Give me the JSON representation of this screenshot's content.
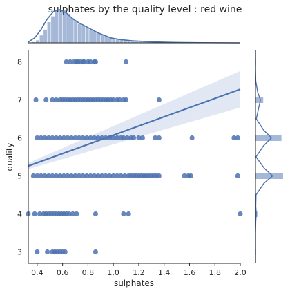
{
  "chart_data": {
    "type": "scatter",
    "title": "sulphates by the quality level : red wine",
    "xlabel": "sulphates",
    "ylabel": "quality",
    "xlim": [
      0.33,
      2.0
    ],
    "ylim": [
      2.7,
      8.3
    ],
    "xticks": [
      "0.4",
      "0.6",
      "0.8",
      "1.0",
      "1.2",
      "1.4",
      "1.6",
      "1.8",
      "2.0"
    ],
    "yticks": [
      "3",
      "4",
      "5",
      "6",
      "7",
      "8"
    ],
    "grid": false,
    "color": "#4c72b0",
    "band_color": "#c9d4ea",
    "regression": {
      "x": [
        0.33,
        2.0
      ],
      "y": [
        5.26,
        7.28
      ],
      "ci_lower": [
        5.18,
        6.8
      ],
      "ci_upper": [
        5.34,
        7.76
      ]
    },
    "points": [
      {
        "quality": 8,
        "sulphates": [
          0.63,
          0.66,
          0.69,
          0.71,
          0.72,
          0.74,
          0.76,
          0.77,
          0.8,
          0.82,
          0.85,
          0.86,
          1.1
        ]
      },
      {
        "quality": 7,
        "sulphates": [
          0.39,
          0.47,
          0.52,
          0.55,
          0.58,
          0.6,
          0.62,
          0.64,
          0.66,
          0.68,
          0.7,
          0.72,
          0.74,
          0.76,
          0.78,
          0.8,
          0.82,
          0.84,
          0.86,
          0.88,
          0.9,
          0.92,
          0.94,
          0.96,
          0.98,
          1.0,
          1.03,
          1.05,
          1.08,
          1.1,
          1.36
        ]
      },
      {
        "quality": 6,
        "sulphates": [
          0.4,
          0.43,
          0.46,
          0.49,
          0.52,
          0.55,
          0.58,
          0.61,
          0.64,
          0.67,
          0.7,
          0.73,
          0.76,
          0.79,
          0.82,
          0.85,
          0.88,
          0.91,
          0.94,
          0.97,
          1.0,
          1.03,
          1.06,
          1.08,
          1.11,
          1.14,
          1.16,
          1.2,
          1.23,
          1.33,
          1.36,
          1.62,
          1.95,
          1.98
        ]
      },
      {
        "quality": 5,
        "sulphates": [
          0.37,
          0.4,
          0.43,
          0.46,
          0.49,
          0.52,
          0.55,
          0.58,
          0.61,
          0.64,
          0.67,
          0.7,
          0.73,
          0.76,
          0.79,
          0.82,
          0.85,
          0.88,
          0.91,
          0.94,
          0.97,
          1.0,
          1.03,
          1.06,
          1.09,
          1.12,
          1.14,
          1.16,
          1.18,
          1.2,
          1.22,
          1.24,
          1.26,
          1.28,
          1.3,
          1.32,
          1.34,
          1.36,
          1.56,
          1.59,
          1.61,
          1.98
        ]
      },
      {
        "quality": 4,
        "sulphates": [
          0.33,
          0.38,
          0.42,
          0.45,
          0.47,
          0.49,
          0.51,
          0.53,
          0.55,
          0.57,
          0.59,
          0.61,
          0.63,
          0.65,
          0.68,
          0.71,
          0.86,
          1.08,
          1.12,
          2.0
        ]
      },
      {
        "quality": 3,
        "sulphates": [
          0.4,
          0.48,
          0.52,
          0.54,
          0.56,
          0.58,
          0.6,
          0.62,
          0.86
        ]
      }
    ],
    "marginal_x": {
      "bins": [
        0.33,
        0.36,
        0.39,
        0.42,
        0.45,
        0.48,
        0.51,
        0.54,
        0.57,
        0.6,
        0.63,
        0.66,
        0.69,
        0.72,
        0.75,
        0.78,
        0.81,
        0.84,
        0.87,
        0.9,
        0.93,
        0.96,
        0.99,
        1.02,
        1.05,
        1.08,
        1.11,
        1.14,
        1.17,
        1.2,
        1.23,
        1.26,
        1.29,
        1.32,
        1.35
      ],
      "density": [
        0.05,
        0.1,
        0.3,
        0.9,
        1.6,
        2.5,
        3.2,
        3.7,
        4.0,
        3.9,
        3.5,
        3.0,
        2.6,
        2.3,
        2.0,
        1.8,
        1.6,
        1.4,
        1.2,
        1.0,
        0.8,
        0.6,
        0.5,
        0.4,
        0.35,
        0.3,
        0.25,
        0.2,
        0.18,
        0.15,
        0.12,
        0.1,
        0.08,
        0.07
      ],
      "kde_x": [
        0.33,
        0.38,
        0.43,
        0.48,
        0.53,
        0.58,
        0.63,
        0.68,
        0.73,
        0.78,
        0.83,
        0.88,
        0.93,
        0.98,
        1.05,
        1.15,
        1.3,
        1.5,
        1.7,
        2.0
      ],
      "kde_y": [
        0.1,
        0.6,
        1.6,
        2.9,
        3.8,
        4.0,
        3.6,
        2.9,
        2.4,
        2.0,
        1.6,
        1.2,
        0.9,
        0.6,
        0.4,
        0.25,
        0.12,
        0.05,
        0.02,
        0.0
      ]
    },
    "marginal_y": {
      "bars": [
        {
          "quality": 3,
          "density": 0.02
        },
        {
          "quality": 4,
          "density": 0.07
        },
        {
          "quality": 5,
          "density": 1.0
        },
        {
          "quality": 6,
          "density": 0.94
        },
        {
          "quality": 7,
          "density": 0.28
        },
        {
          "quality": 8,
          "density": 0.02
        }
      ],
      "kde_q": [
        2.7,
        3.0,
        3.5,
        3.8,
        4.0,
        4.2,
        4.5,
        4.8,
        5.0,
        5.2,
        5.5,
        5.8,
        6.0,
        6.2,
        6.5,
        6.8,
        7.0,
        7.2,
        7.5,
        7.8,
        8.0,
        8.3
      ],
      "kde_d": [
        0.0,
        0.0,
        0.0,
        0.01,
        0.03,
        0.01,
        0.02,
        0.3,
        0.62,
        0.32,
        0.02,
        0.3,
        0.58,
        0.3,
        0.03,
        0.12,
        0.18,
        0.08,
        0.01,
        0.0,
        0.0,
        0.0
      ]
    }
  }
}
